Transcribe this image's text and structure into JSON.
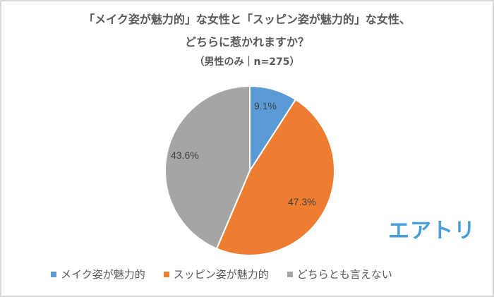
{
  "chart_data": {
    "type": "pie",
    "title": "「メイク姿が魅力的」な女性と「スッピン姿が魅力的」な女性、どちらに惹かれますか？",
    "subtitle": "（男性のみ｜n=275）",
    "categories": [
      "メイク姿が魅力的",
      "スッピン姿が魅力的",
      "どちらとも言えない"
    ],
    "values": [
      9.1,
      47.3,
      43.6
    ],
    "unit": "%",
    "colors": [
      "#5b9bd5",
      "#ed7d31",
      "#a5a5a5"
    ],
    "start_angle": "12 o'clock, clockwise",
    "data_labels": [
      "9.1%",
      "47.3%",
      "43.6%"
    ],
    "legend_position": "bottom"
  },
  "title": {
    "line1": "「メイク姿が魅力的」な女性と「スッピン姿が魅力的」な女性、",
    "line2": "どちらに惹かれますか？",
    "line3": "（男性のみ｜n=275）"
  },
  "labels": {
    "slice0": "9.1%",
    "slice1": "47.3%",
    "slice2": "43.6%"
  },
  "legend": {
    "items": [
      {
        "label": "メイク姿が魅力的",
        "color": "#5b9bd5"
      },
      {
        "label": "スッピン姿が魅力的",
        "color": "#ed7d31"
      },
      {
        "label": "どちらとも言えない",
        "color": "#a5a5a5"
      }
    ]
  },
  "logo": {
    "text": "エアトリ",
    "color": "#4a9fd8"
  }
}
